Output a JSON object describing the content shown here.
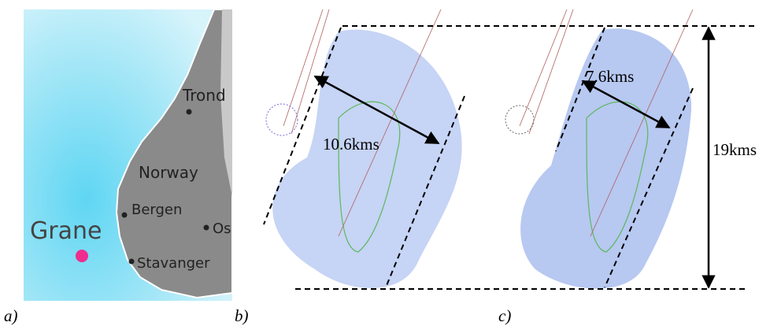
{
  "panels": [
    {
      "label": "a)"
    },
    {
      "label": "b)"
    },
    {
      "label": "c)"
    }
  ],
  "map": {
    "places": [
      "Trond",
      "Norway",
      "Bergen",
      "Os",
      "Stavanger"
    ],
    "field": "Grane"
  },
  "measurements": {
    "width_b": "10.6kms",
    "width_c": "7.6kms",
    "length": "19kms"
  }
}
